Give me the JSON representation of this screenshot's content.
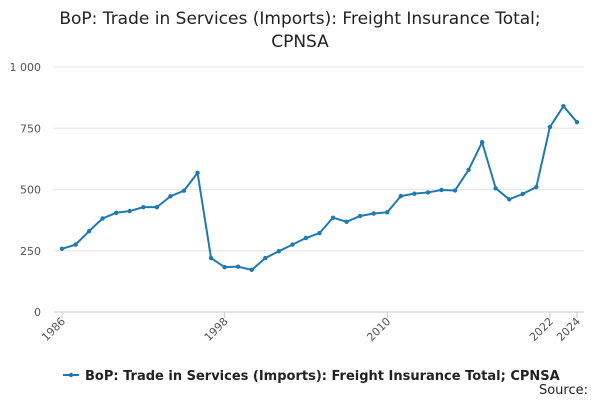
{
  "chart_data": {
    "type": "line",
    "title_lines": [
      "BoP: Trade in Services (Imports): Freight Insurance Total;",
      "CPNSA"
    ],
    "x": [
      1986,
      1987,
      1988,
      1989,
      1990,
      1991,
      1992,
      1993,
      1994,
      1995,
      1996,
      1997,
      1998,
      1999,
      2000,
      2001,
      2002,
      2003,
      2004,
      2005,
      2006,
      2007,
      2008,
      2009,
      2010,
      2011,
      2012,
      2013,
      2014,
      2015,
      2016,
      2017,
      2018,
      2019,
      2020,
      2021,
      2022,
      2023,
      2024
    ],
    "series": [
      {
        "name": "BoP: Trade in Services (Imports): Freight Insurance Total; CPNSA",
        "color": "#1f7ab3",
        "values": [
          258,
          275,
          330,
          382,
          405,
          412,
          428,
          428,
          472,
          495,
          568,
          220,
          183,
          185,
          172,
          220,
          248,
          275,
          302,
          322,
          385,
          368,
          392,
          402,
          407,
          473,
          483,
          488,
          498,
          496,
          580,
          693,
          505,
          460,
          482,
          510,
          755,
          840,
          775
        ]
      }
    ],
    "ylim": [
      0,
      1000
    ],
    "yticks": [
      0,
      250,
      500,
      750,
      1000
    ],
    "ytick_labels": [
      "0",
      "250",
      "500",
      "750",
      "1 000"
    ],
    "xtick_values": [
      1986,
      1998,
      2010,
      2022,
      2024
    ],
    "xtick_labels": [
      "1986",
      "1998",
      "2010",
      "2022",
      "2024"
    ],
    "xlabel": "",
    "ylabel": "",
    "grid": true,
    "legend_position": "bottom",
    "source_label": "Source:"
  }
}
